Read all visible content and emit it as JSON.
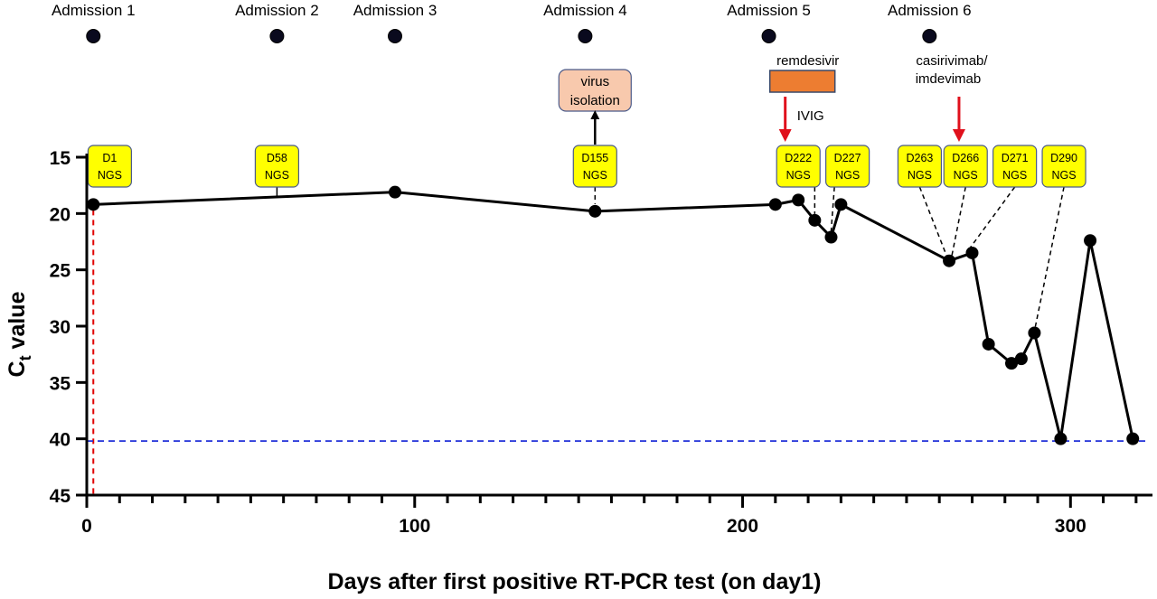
{
  "chart_data": {
    "type": "line",
    "title": "",
    "xlabel": "Days after first positive RT-PCR test (on day1)",
    "ylabel": "C",
    "ylabel_sub": "t",
    "ylabel_suffix": " value",
    "xlim": [
      0,
      325
    ],
    "ylim": [
      15,
      45
    ],
    "y_inverted": true,
    "x_ticks": [
      0,
      100,
      200,
      300
    ],
    "x_minor_step": 10,
    "y_ticks": [
      15,
      20,
      25,
      30,
      35,
      40,
      45
    ],
    "series": [
      {
        "name": "Ct value",
        "x": [
          2,
          94,
          155,
          210,
          217,
          222,
          227,
          230,
          263,
          270,
          275,
          282,
          285,
          289,
          297,
          306,
          319
        ],
        "y": [
          19.2,
          18.1,
          19.8,
          19.2,
          18.8,
          20.6,
          22.1,
          19.2,
          24.2,
          23.5,
          31.6,
          33.3,
          32.9,
          30.6,
          40.0,
          22.4,
          40.0
        ]
      }
    ],
    "reference_lines": [
      {
        "axis": "x",
        "value": 2,
        "color": "#e00000",
        "style": "dashed"
      },
      {
        "axis": "y",
        "value": 40.2,
        "color": "#1f2fd8",
        "style": "dashed"
      }
    ],
    "admissions": [
      {
        "label": "Admission 1",
        "x": 2
      },
      {
        "label": "Admission 2",
        "x": 58
      },
      {
        "label": "Admission 3",
        "x": 94
      },
      {
        "label": "Admission 4",
        "x": 152
      },
      {
        "label": "Admission 5",
        "x": 208
      },
      {
        "label": "Admission 6",
        "x": 257
      }
    ],
    "ngs_labels": [
      {
        "day": "D1",
        "tag": "NGS",
        "x": 7
      },
      {
        "day": "D58",
        "tag": "NGS",
        "x": 58
      },
      {
        "day": "D155",
        "tag": "NGS",
        "x": 155
      },
      {
        "day": "D222",
        "tag": "NGS",
        "x": 217
      },
      {
        "day": "D227",
        "tag": "NGS",
        "x": 232
      },
      {
        "day": "D263",
        "tag": "NGS",
        "x": 254
      },
      {
        "day": "D266",
        "tag": "NGS",
        "x": 268
      },
      {
        "day": "D271",
        "tag": "NGS",
        "x": 283
      },
      {
        "day": "D290",
        "tag": "NGS",
        "x": 298
      }
    ],
    "annotations": {
      "virus_isolation": [
        "virus",
        "isolation"
      ],
      "remdesivir": "remdesivir",
      "ivig": "IVIG",
      "casirivimab": [
        "casirivimab/",
        "imdevimab"
      ]
    },
    "colors": {
      "ngs_fill": "#ffff00",
      "ngs_border": "#4a5a8a",
      "virus_fill": "#f8c9ad",
      "remdesivir_fill": "#ed7d31",
      "arrow_red": "#e0101c",
      "ref_red": "#e00000",
      "ref_blue": "#1f2fd8",
      "line": "#000000"
    }
  }
}
